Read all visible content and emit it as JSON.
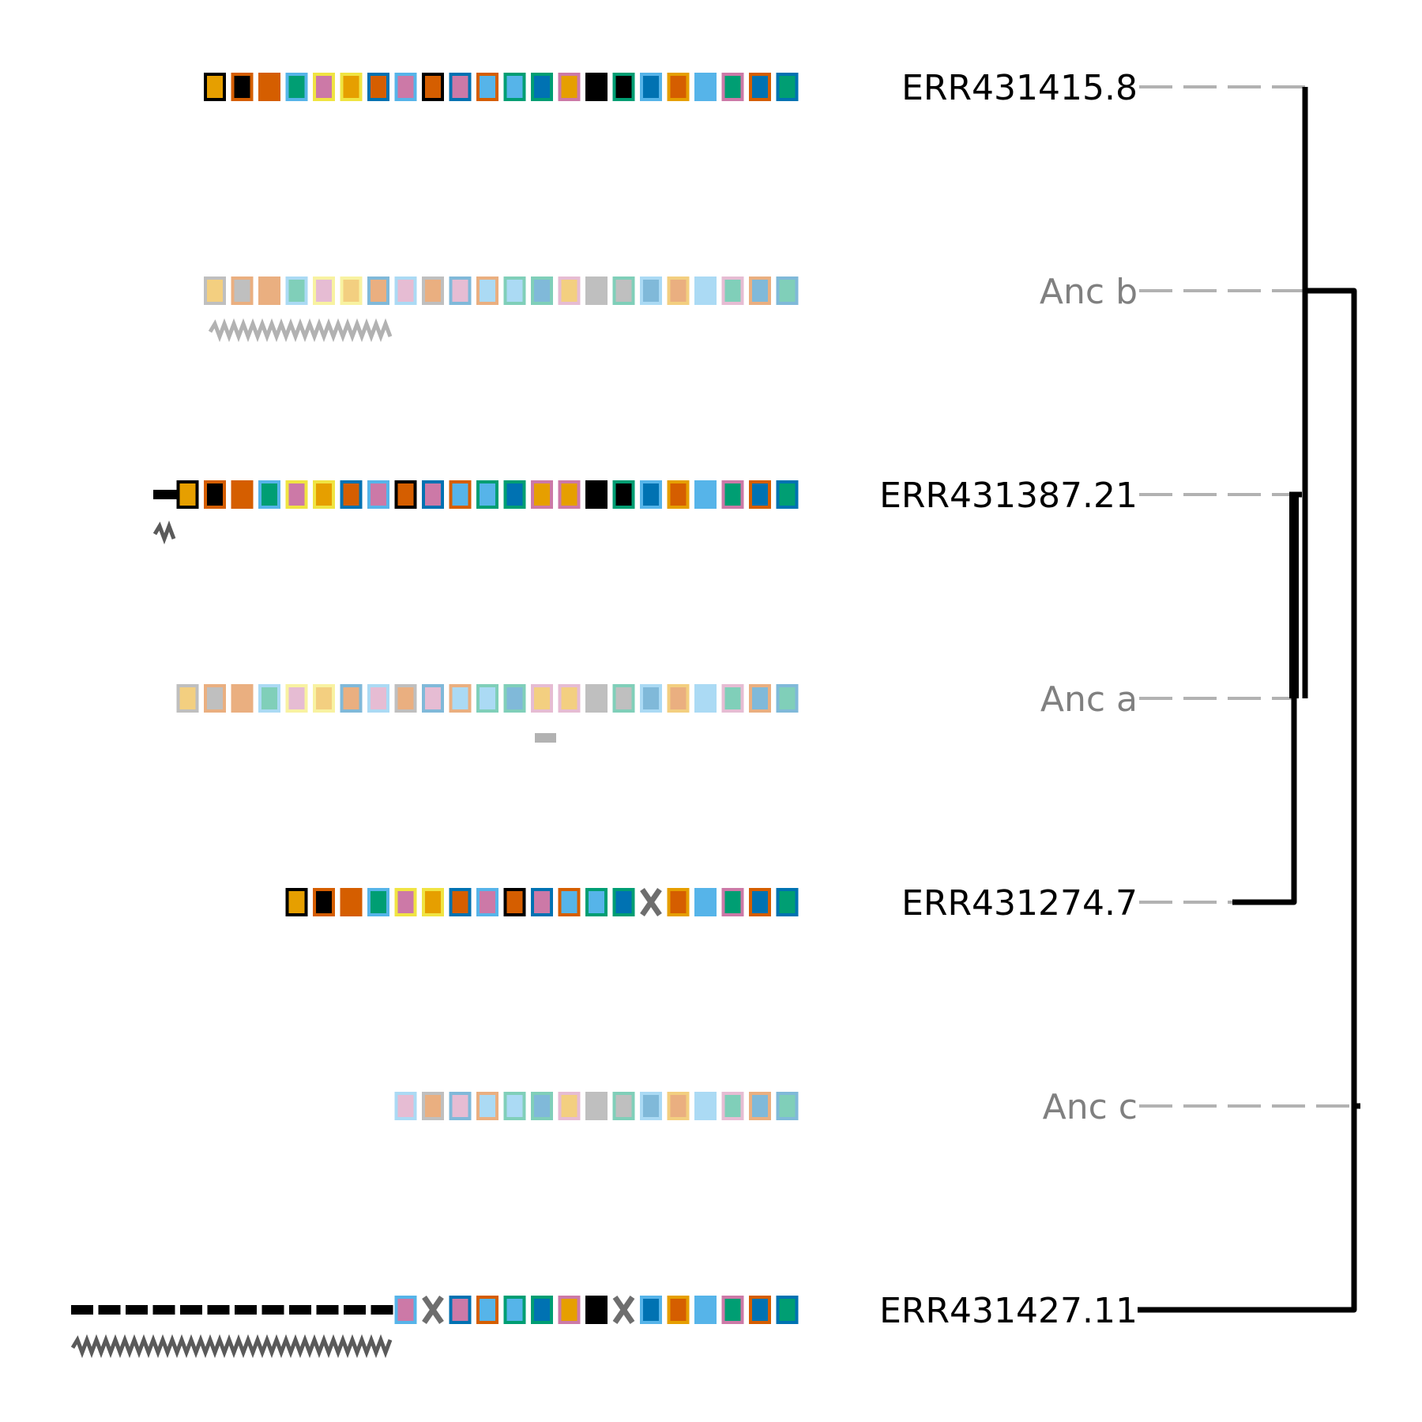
{
  "colors": {
    "black": "#000000",
    "orange": "#E69F00",
    "vermillion": "#D55E00",
    "green": "#009E73",
    "sky": "#56B4E9",
    "blue": "#0072B2",
    "pink": "#CC79A7",
    "yellow": "#F0E442",
    "grey": "#7F7F7F",
    "lightgrey": "#B2B2B2",
    "label_ancestral": "#808080",
    "label_leaf": "#000000"
  },
  "rows": [
    {
      "label": "ERR431415.8",
      "ancestral": false,
      "spacers": [
        [
          "black",
          "orange"
        ],
        [
          "vermillion",
          "black"
        ],
        [
          "vermillion",
          "vermillion"
        ],
        [
          "sky",
          "green"
        ],
        [
          "yellow",
          "pink"
        ],
        [
          "yellow",
          "orange"
        ],
        [
          "blue",
          "vermillion"
        ],
        [
          "sky",
          "pink"
        ],
        [
          "black",
          "vermillion"
        ],
        [
          "blue",
          "pink"
        ],
        [
          "vermillion",
          "sky"
        ],
        [
          "green",
          "sky"
        ],
        [
          "green",
          "blue"
        ],
        [
          "pink",
          "orange"
        ],
        [
          "black",
          "black"
        ],
        [
          "green",
          "black"
        ],
        [
          "sky",
          "blue"
        ],
        [
          "orange",
          "vermillion"
        ],
        [
          "sky",
          "sky"
        ],
        [
          "pink",
          "green"
        ],
        [
          "vermillion",
          "blue"
        ],
        [
          "blue",
          "green"
        ]
      ]
    },
    {
      "label": "Anc b",
      "ancestral": true,
      "spacers": [
        [
          "grey",
          "orange"
        ],
        [
          "vermillion",
          "grey"
        ],
        [
          "vermillion",
          "vermillion"
        ],
        [
          "sky",
          "green"
        ],
        [
          "yellow",
          "pink"
        ],
        [
          "yellow",
          "orange"
        ],
        [
          "blue",
          "vermillion"
        ],
        [
          "sky",
          "pink"
        ],
        [
          "grey",
          "vermillion"
        ],
        [
          "blue",
          "pink"
        ],
        [
          "vermillion",
          "sky"
        ],
        [
          "green",
          "sky"
        ],
        [
          "green",
          "blue"
        ],
        [
          "pink",
          "orange"
        ],
        [
          "grey",
          "grey"
        ],
        [
          "green",
          "grey"
        ],
        [
          "sky",
          "blue"
        ],
        [
          "orange",
          "vermillion"
        ],
        [
          "sky",
          "sky"
        ],
        [
          "pink",
          "green"
        ],
        [
          "vermillion",
          "blue"
        ],
        [
          "blue",
          "green"
        ]
      ]
    },
    {
      "label": "ERR431387.21",
      "ancestral": false,
      "spacers": [
        [
          "black",
          "orange"
        ],
        [
          "vermillion",
          "black"
        ],
        [
          "vermillion",
          "vermillion"
        ],
        [
          "sky",
          "green"
        ],
        [
          "yellow",
          "pink"
        ],
        [
          "yellow",
          "orange"
        ],
        [
          "blue",
          "vermillion"
        ],
        [
          "sky",
          "pink"
        ],
        [
          "black",
          "vermillion"
        ],
        [
          "blue",
          "pink"
        ],
        [
          "vermillion",
          "sky"
        ],
        [
          "green",
          "sky"
        ],
        [
          "green",
          "blue"
        ],
        [
          "pink",
          "orange"
        ],
        [
          "pink",
          "orange"
        ],
        [
          "black",
          "black"
        ],
        [
          "green",
          "black"
        ],
        [
          "sky",
          "blue"
        ],
        [
          "orange",
          "vermillion"
        ],
        [
          "sky",
          "sky"
        ],
        [
          "pink",
          "green"
        ],
        [
          "vermillion",
          "blue"
        ],
        [
          "blue",
          "green"
        ]
      ]
    },
    {
      "label": "Anc a",
      "ancestral": true,
      "spacers": [
        [
          "grey",
          "orange"
        ],
        [
          "vermillion",
          "grey"
        ],
        [
          "vermillion",
          "vermillion"
        ],
        [
          "sky",
          "green"
        ],
        [
          "yellow",
          "pink"
        ],
        [
          "yellow",
          "orange"
        ],
        [
          "blue",
          "vermillion"
        ],
        [
          "sky",
          "pink"
        ],
        [
          "grey",
          "vermillion"
        ],
        [
          "blue",
          "pink"
        ],
        [
          "vermillion",
          "sky"
        ],
        [
          "green",
          "sky"
        ],
        [
          "green",
          "blue"
        ],
        [
          "pink",
          "orange"
        ],
        [
          "pink",
          "orange"
        ],
        [
          "grey",
          "grey"
        ],
        [
          "green",
          "grey"
        ],
        [
          "sky",
          "blue"
        ],
        [
          "orange",
          "vermillion"
        ],
        [
          "sky",
          "sky"
        ],
        [
          "pink",
          "green"
        ],
        [
          "vermillion",
          "blue"
        ],
        [
          "blue",
          "green"
        ]
      ]
    },
    {
      "label": "ERR431274.7",
      "ancestral": false,
      "spacers": [
        [
          "black",
          "orange"
        ],
        [
          "vermillion",
          "black"
        ],
        [
          "vermillion",
          "vermillion"
        ],
        [
          "sky",
          "green"
        ],
        [
          "yellow",
          "pink"
        ],
        [
          "yellow",
          "orange"
        ],
        [
          "blue",
          "vermillion"
        ],
        [
          "sky",
          "pink"
        ],
        [
          "black",
          "vermillion"
        ],
        [
          "blue",
          "pink"
        ],
        [
          "vermillion",
          "sky"
        ],
        [
          "green",
          "sky"
        ],
        [
          "green",
          "blue"
        ],
        "deletion",
        [
          "orange",
          "vermillion"
        ],
        [
          "sky",
          "sky"
        ],
        [
          "pink",
          "green"
        ],
        [
          "vermillion",
          "blue"
        ],
        [
          "blue",
          "green"
        ]
      ]
    },
    {
      "label": "Anc c",
      "ancestral": true,
      "spacers": [
        [
          "sky",
          "pink"
        ],
        [
          "grey",
          "vermillion"
        ],
        [
          "blue",
          "pink"
        ],
        [
          "vermillion",
          "sky"
        ],
        [
          "green",
          "sky"
        ],
        [
          "green",
          "blue"
        ],
        [
          "pink",
          "orange"
        ],
        [
          "grey",
          "grey"
        ],
        [
          "green",
          "grey"
        ],
        [
          "sky",
          "blue"
        ],
        [
          "orange",
          "vermillion"
        ],
        [
          "sky",
          "sky"
        ],
        [
          "pink",
          "green"
        ],
        [
          "vermillion",
          "blue"
        ],
        [
          "blue",
          "green"
        ]
      ]
    },
    {
      "label": "ERR431427.11",
      "ancestral": false,
      "spacers": [
        [
          "sky",
          "pink"
        ],
        "deletion",
        [
          "blue",
          "pink"
        ],
        [
          "vermillion",
          "sky"
        ],
        [
          "green",
          "sky"
        ],
        [
          "green",
          "blue"
        ],
        [
          "pink",
          "orange"
        ],
        [
          "black",
          "black"
        ],
        "deletion",
        [
          "sky",
          "blue"
        ],
        [
          "orange",
          "vermillion"
        ],
        [
          "sky",
          "sky"
        ],
        [
          "pink",
          "green"
        ],
        [
          "vermillion",
          "blue"
        ],
        [
          "blue",
          "green"
        ]
      ]
    }
  ]
}
